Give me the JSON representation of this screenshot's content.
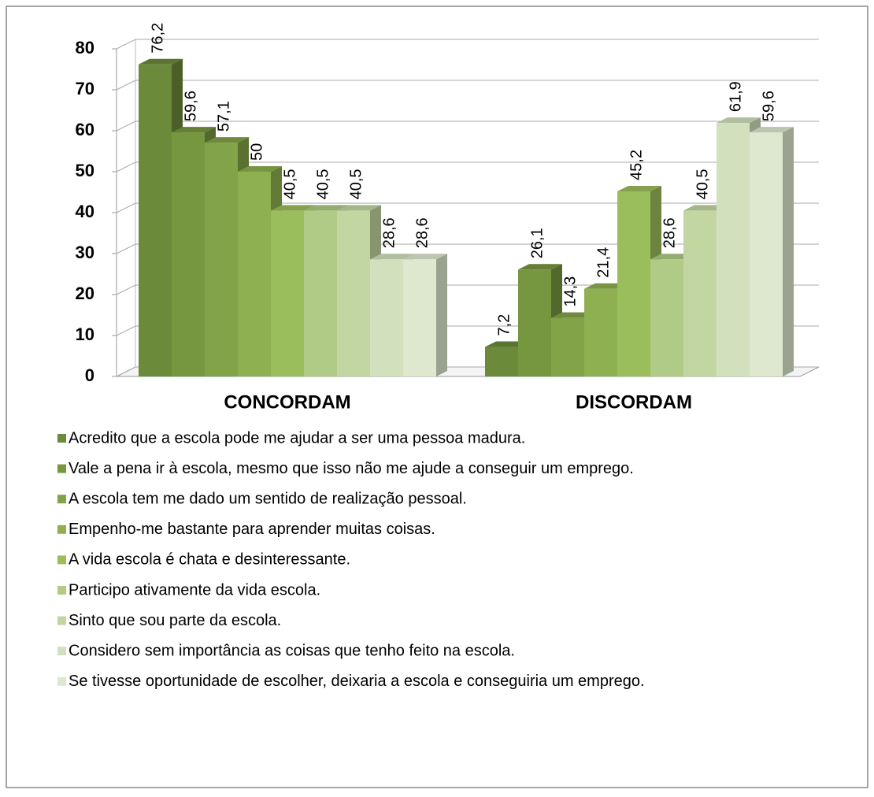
{
  "chart_data": {
    "type": "bar",
    "categories": [
      "CONCORDAM",
      "DISCORDAM"
    ],
    "series": [
      {
        "name": "Acredito que a escola pode me ajudar a ser uma pessoa madura.",
        "color": "#6b8a3a",
        "values": [
          76.2,
          7.2
        ],
        "value_labels": [
          "76,2",
          "7,2"
        ]
      },
      {
        "name": "Vale a pena ir à escola, mesmo que isso não me ajude a conseguir um emprego.",
        "color": "#779640",
        "values": [
          59.6,
          26.1
        ],
        "value_labels": [
          "59,6",
          "26,1"
        ]
      },
      {
        "name": "A escola tem me dado um sentido de realização pessoal.",
        "color": "#83a348",
        "values": [
          57.1,
          14.3
        ],
        "value_labels": [
          "57,1",
          "14,3"
        ]
      },
      {
        "name": "Empenho-me bastante para aprender muitas coisas.",
        "color": "#8fb050",
        "values": [
          50,
          21.4
        ],
        "value_labels": [
          "50",
          "21,4"
        ]
      },
      {
        "name": "A vida escola é chata e desinteressante.",
        "color": "#9bbe5c",
        "values": [
          40.5,
          45.2
        ],
        "value_labels": [
          "40,5",
          "45,2"
        ]
      },
      {
        "name": "Participo ativamente da vida escola.",
        "color": "#b0cb85",
        "values": [
          40.5,
          28.6
        ],
        "value_labels": [
          "40,5",
          "28,6"
        ]
      },
      {
        "name": "Sinto que sou parte da escola.",
        "color": "#c2d6a2",
        "values": [
          40.5,
          40.5
        ],
        "value_labels": [
          "40,5",
          "40,5"
        ]
      },
      {
        "name": "Considero sem importância as coisas que tenho feito na escola.",
        "color": "#d2e0bd",
        "values": [
          28.6,
          61.9
        ],
        "value_labels": [
          "28,6",
          "61,9"
        ]
      },
      {
        "name": "Se tivesse oportunidade de escolher, deixaria a escola e conseguiria um emprego.",
        "color": "#dde8cf",
        "values": [
          28.6,
          59.6
        ],
        "value_labels": [
          "28,6",
          "59,6"
        ]
      }
    ],
    "ylim": [
      0,
      80
    ],
    "yticks": [
      0,
      10,
      20,
      30,
      40,
      50,
      60,
      70,
      80
    ],
    "grid": true,
    "legend": "bottom"
  }
}
